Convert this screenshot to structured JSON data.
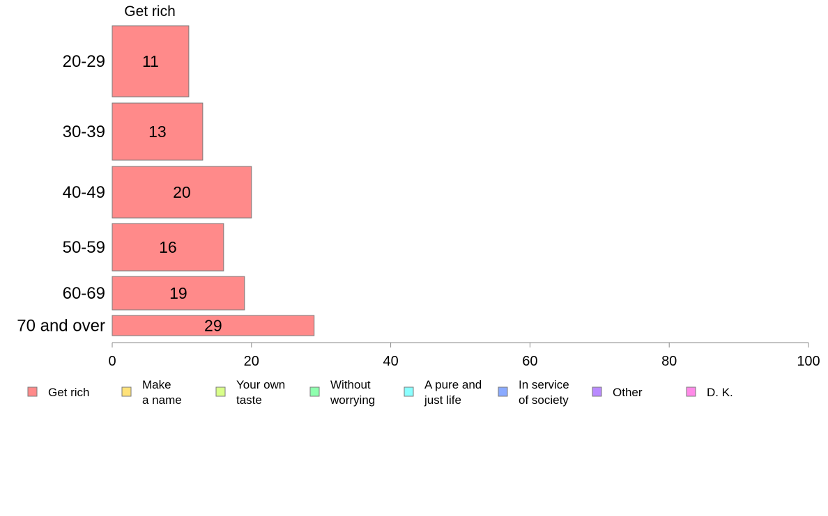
{
  "chart_data": {
    "type": "bar",
    "orientation": "horizontal",
    "panel_title": "Get rich",
    "categories": [
      "20-29",
      "30-39",
      "40-49",
      "50-59",
      "60-69",
      "70 and over"
    ],
    "series": [
      {
        "name": "Get rich",
        "values": [
          11,
          13,
          20,
          16,
          19,
          29
        ],
        "color": "#ff8a8a"
      }
    ],
    "xlim": [
      0,
      100
    ],
    "xticks": [
      0,
      20,
      40,
      60,
      80,
      100
    ],
    "grid": false,
    "legend_position": "bottom",
    "legend": [
      {
        "label": "Get rich",
        "color": "#ff8a8a"
      },
      {
        "label": "Make\na name",
        "color": "#ffe27a"
      },
      {
        "label": "Your own\ntaste",
        "color": "#d9ff8a"
      },
      {
        "label": "Without\nworrying",
        "color": "#8effae"
      },
      {
        "label": "A pure and\njust life",
        "color": "#8affff"
      },
      {
        "label": "In service\nof society",
        "color": "#8aaaff"
      },
      {
        "label": "Other",
        "color": "#b98aff"
      },
      {
        "label": "D. K.",
        "color": "#ff8ae8"
      }
    ]
  }
}
